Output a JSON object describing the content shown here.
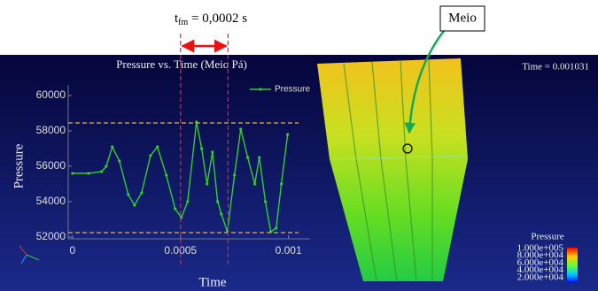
{
  "chart_data": {
    "type": "line",
    "title": "Pressure vs. Time (Meio Pá)",
    "x_label": "Time",
    "y_label": "Pressure",
    "x": [
      0,
      7.4e-05,
      0.000135,
      0.000156,
      0.000184,
      0.000217,
      0.000258,
      0.000287,
      0.00032,
      0.000361,
      0.000393,
      0.000434,
      0.000475,
      0.000504,
      0.000533,
      0.000574,
      0.000598,
      0.000623,
      0.000648,
      0.000672,
      0.000689,
      0.000717,
      0.00075,
      0.000779,
      0.000811,
      0.000844,
      0.000865,
      0.000893,
      0.000918,
      0.000943,
      0.000967,
      0.000996
    ],
    "series": [
      {
        "name": "Pressure",
        "color": "#33cc33",
        "values": [
          55600,
          55600,
          55700,
          56000,
          57100,
          56300,
          54400,
          53800,
          54500,
          56600,
          57100,
          55500,
          53600,
          53100,
          54000,
          58500,
          57000,
          55000,
          56800,
          54000,
          53300,
          52300,
          55500,
          58100,
          56500,
          55000,
          56500,
          54000,
          52300,
          52500,
          55000,
          57800
        ]
      }
    ],
    "xlim": [
      -2e-05,
      0.0011
    ],
    "ylim": [
      51900,
      60600
    ],
    "xticks": [
      0,
      0.0005,
      0.001
    ],
    "yticks": [
      52000,
      54000,
      56000,
      58000,
      60000
    ],
    "grid": false,
    "legend": "top-right",
    "vlines": [
      0.0005,
      0.00072
    ],
    "hlines": [
      58450,
      52250
    ],
    "window_label": [
      "t",
      "fm",
      " = 0,0002 s"
    ],
    "callout": "Meio",
    "time_stamp": "Time = 0.001031",
    "colorbar": {
      "title": "Pressure",
      "labels": [
        "1.000e+005",
        "8.000e+004",
        "6.000e+004",
        "4.000e+004",
        "2.000e+004"
      ]
    }
  }
}
